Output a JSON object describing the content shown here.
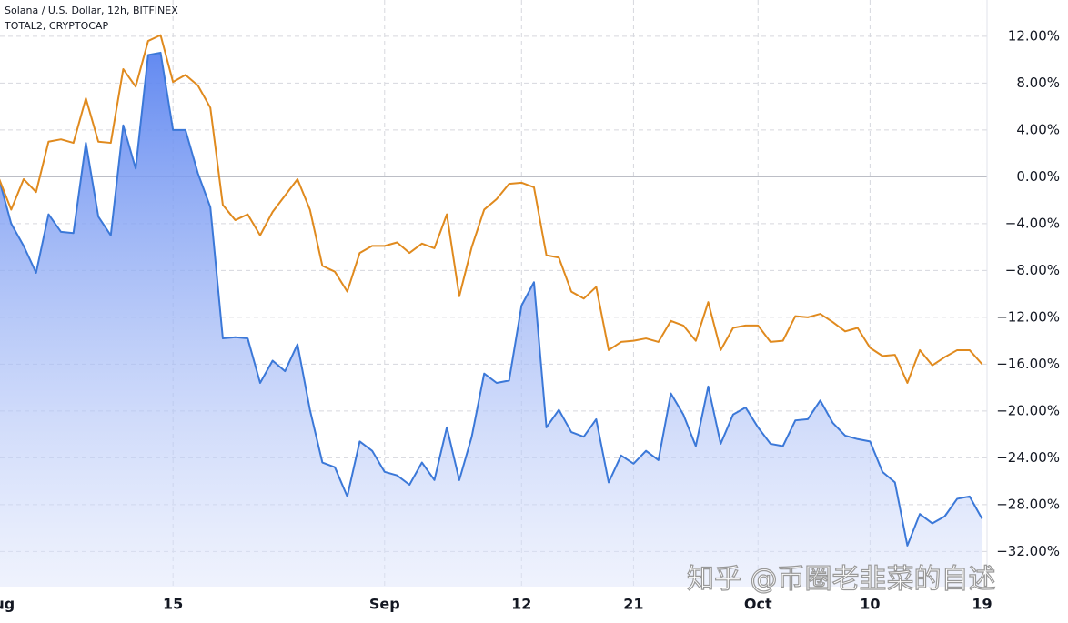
{
  "chart_data": {
    "type": "line",
    "watermark": "知乎 @币圈老韭菜的自述",
    "x": [
      0,
      1,
      2,
      3,
      4,
      5,
      6,
      7,
      8,
      9,
      10,
      11,
      12,
      13,
      14,
      15,
      16,
      17,
      18,
      19,
      20,
      21,
      22,
      23,
      24,
      25,
      26,
      27,
      28,
      29,
      30,
      31,
      32,
      33,
      34,
      35,
      36,
      37,
      38,
      39,
      40,
      41,
      42,
      43,
      44,
      45,
      46,
      47,
      48,
      49,
      50,
      51,
      52,
      53,
      54,
      55,
      56,
      57,
      58,
      59,
      60,
      61,
      62,
      63,
      64,
      65,
      66,
      67,
      68,
      69,
      70,
      71,
      72,
      73,
      74,
      75,
      76,
      77,
      78,
      79
    ],
    "series": [
      {
        "name": "Solana / U.S. Dollar, 12h, BITFINEX",
        "color": "#3b78d8",
        "area": true,
        "values": [
          -0.1,
          -4.0,
          -5.9,
          -8.2,
          -3.2,
          -4.7,
          -4.8,
          2.9,
          -3.4,
          -5.0,
          4.4,
          0.7,
          10.4,
          10.6,
          4.0,
          4.0,
          0.3,
          -2.6,
          -13.8,
          -13.7,
          -13.8,
          -17.6,
          -15.7,
          -16.6,
          -14.3,
          -19.9,
          -24.4,
          -24.8,
          -27.3,
          -22.6,
          -23.4,
          -25.2,
          -25.5,
          -26.3,
          -24.4,
          -25.9,
          -21.4,
          -25.9,
          -22.2,
          -16.8,
          -17.6,
          -17.4,
          -11.0,
          -9.0,
          -21.4,
          -19.9,
          -21.8,
          -22.2,
          -20.7,
          -26.1,
          -23.8,
          -24.5,
          -23.4,
          -24.2,
          -18.5,
          -20.3,
          -23.0,
          -17.9,
          -22.8,
          -20.3,
          -19.7,
          -21.4,
          -22.8,
          -23.0,
          -20.8,
          -20.7,
          -19.1,
          -21.0,
          -22.1,
          -22.4,
          -22.6,
          -25.2,
          -26.1,
          -31.5,
          -28.8,
          -29.6,
          -29.0,
          -27.5,
          -27.3,
          -29.2
        ]
      },
      {
        "name": "TOTAL2, CRYPTOCAP",
        "color": "#e08a1e",
        "area": false,
        "values": [
          -0.1,
          -2.8,
          -0.2,
          -1.3,
          3.0,
          3.2,
          2.9,
          6.7,
          3.0,
          2.9,
          9.2,
          7.7,
          11.6,
          12.1,
          8.1,
          8.7,
          7.8,
          5.9,
          -2.4,
          -3.7,
          -3.2,
          -5.0,
          -3.0,
          -1.6,
          -0.2,
          -2.8,
          -7.6,
          -8.1,
          -9.8,
          -6.5,
          -5.9,
          -5.9,
          -5.6,
          -6.5,
          -5.7,
          -6.1,
          -3.2,
          -10.2,
          -6.0,
          -2.8,
          -1.9,
          -0.6,
          -0.5,
          -0.9,
          -6.7,
          -6.9,
          -9.8,
          -10.4,
          -9.4,
          -14.8,
          -14.1,
          -14.0,
          -13.8,
          -14.1,
          -12.3,
          -12.7,
          -14.0,
          -10.7,
          -14.8,
          -12.9,
          -12.7,
          -12.7,
          -14.1,
          -14.0,
          -11.9,
          -12.0,
          -11.7,
          -12.4,
          -13.2,
          -12.9,
          -14.6,
          -15.3,
          -15.2,
          -17.6,
          -14.8,
          -16.1,
          -15.4,
          -14.8,
          -14.8,
          -16.0
        ]
      }
    ],
    "xlim": [
      0.1,
      79.4
    ],
    "xticks": [
      {
        "value": 0,
        "label": "Aug"
      },
      {
        "value": 14,
        "label": "15"
      },
      {
        "value": 31,
        "label": "Sep"
      },
      {
        "value": 42,
        "label": "12"
      },
      {
        "value": 51,
        "label": "21"
      },
      {
        "value": 61,
        "label": "Oct"
      },
      {
        "value": 70,
        "label": "10"
      },
      {
        "value": 79,
        "label": "19"
      }
    ],
    "ylim": [
      -35,
      15.1
    ],
    "yticks": [
      {
        "value": 12,
        "label": "12.00%"
      },
      {
        "value": 8,
        "label": "8.00%"
      },
      {
        "value": 4,
        "label": "4.00%"
      },
      {
        "value": 0,
        "label": "0.00%"
      },
      {
        "value": -4,
        "label": "−4.00%"
      },
      {
        "value": -8,
        "label": "−8.00%"
      },
      {
        "value": -12,
        "label": "−12.00%"
      },
      {
        "value": -16,
        "label": "−16.00%"
      },
      {
        "value": -20,
        "label": "−20.00%"
      },
      {
        "value": -24,
        "label": "−24.00%"
      },
      {
        "value": -28,
        "label": "−28.00%"
      },
      {
        "value": -32,
        "label": "−32.00%"
      }
    ],
    "grid": true
  }
}
